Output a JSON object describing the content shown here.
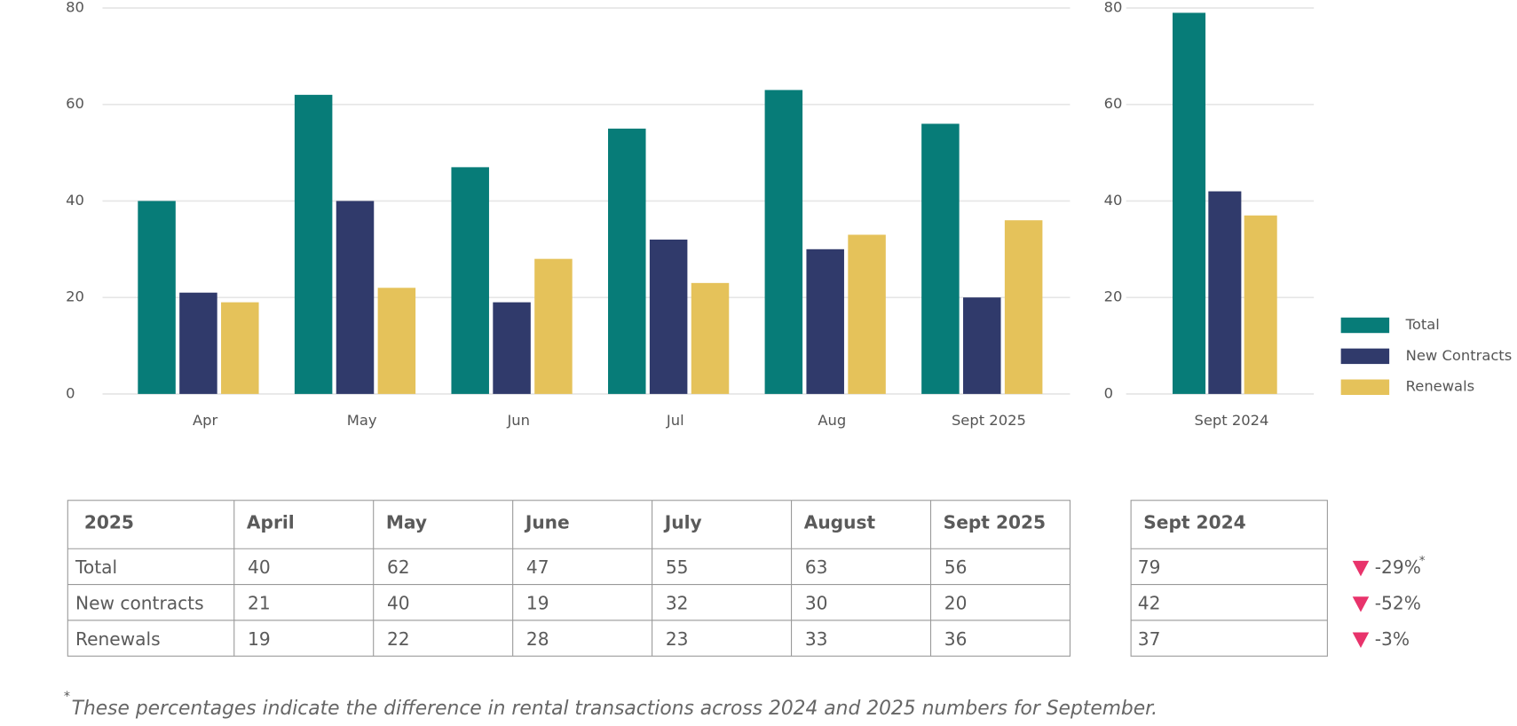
{
  "chart_data": [
    {
      "type": "bar",
      "categories": [
        "Apr",
        "May",
        "Jun",
        "Jul",
        "Aug",
        "Sept 2025"
      ],
      "series": [
        {
          "color": "#077c78",
          "values": [
            40,
            62,
            47,
            55,
            63,
            56
          ]
        },
        {
          "color": "#303a6b",
          "values": [
            21,
            40,
            19,
            32,
            30,
            20
          ]
        },
        {
          "color": "#e5c25a",
          "values": [
            19,
            22,
            28,
            23,
            33,
            36
          ]
        }
      ],
      "ylim": [
        0,
        80
      ],
      "yticks": [
        0,
        20,
        40,
        60,
        80
      ],
      "grid": true
    },
    {
      "type": "bar",
      "categories": [
        "Sept 2024"
      ],
      "series": [
        {
          "name": "Total",
          "color": "#077c78",
          "values": [
            79
          ]
        },
        {
          "name": "New Contracts",
          "color": "#303a6b",
          "values": [
            42
          ]
        },
        {
          "name": "Renewals",
          "color": "#e5c25a",
          "values": [
            37
          ]
        }
      ],
      "ylim": [
        0,
        80
      ],
      "yticks": [
        0,
        20,
        40,
        60,
        80
      ],
      "grid": true,
      "legend": "right"
    }
  ],
  "table": {
    "header": [
      "2025",
      "April",
      "May",
      "June",
      "July",
      "August",
      "Sept 2025"
    ],
    "rows": [
      [
        "Total",
        40,
        62,
        47,
        55,
        63,
        56
      ],
      [
        "New contracts",
        21,
        40,
        19,
        32,
        30,
        20
      ],
      [
        "Renewals",
        19,
        22,
        28,
        23,
        33,
        36
      ]
    ]
  },
  "side_table": {
    "header": "Sept 2024",
    "rows": [
      79,
      42,
      37
    ],
    "changes": [
      "-29%",
      "-52%",
      "-3%"
    ]
  },
  "footnote": {
    "marker": "*",
    "text": "These percentages indicate the difference in rental transactions across 2024 and 2025 numbers for September."
  }
}
